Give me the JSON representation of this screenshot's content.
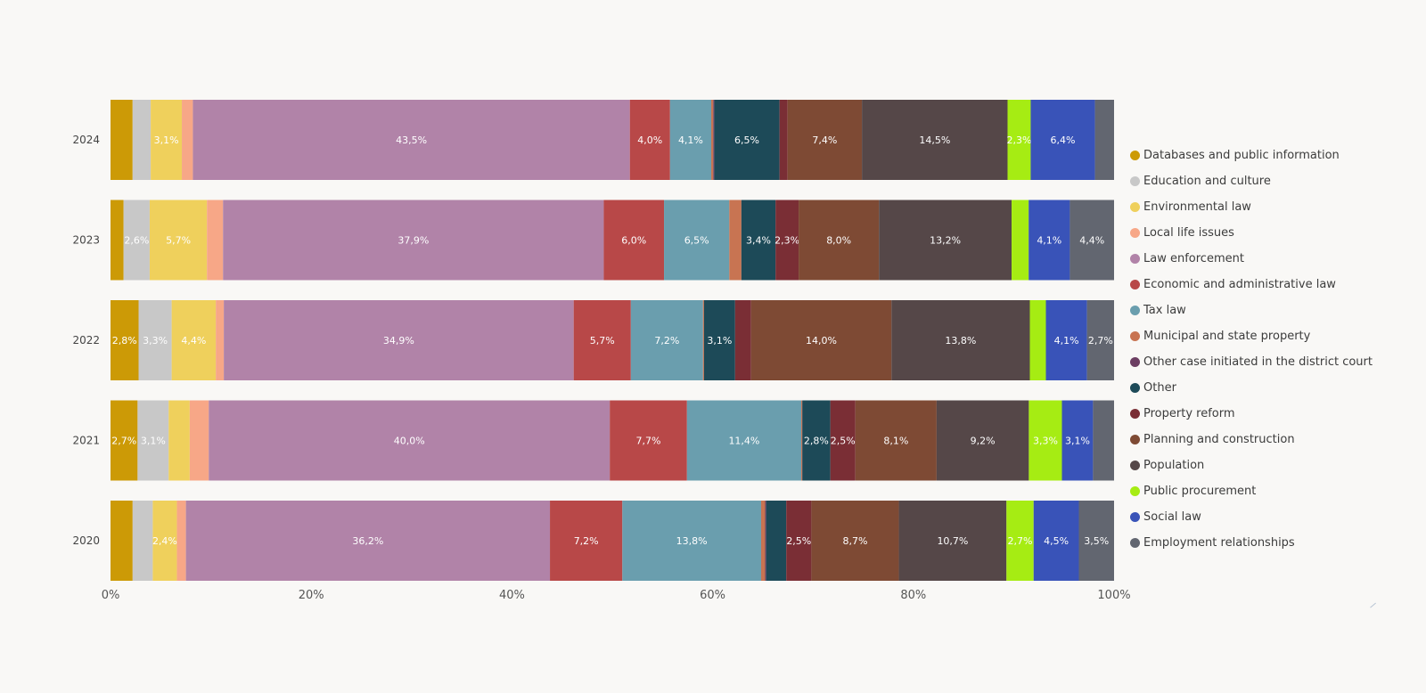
{
  "chart_data": {
    "type": "bar",
    "orientation": "horizontal",
    "stacking": "percent",
    "categories": [
      "2024",
      "2023",
      "2022",
      "2021",
      "2020"
    ],
    "x_ticks": [
      "0%",
      "20%",
      "40%",
      "60%",
      "80%",
      "100%"
    ],
    "xlim": [
      0,
      100
    ],
    "grid": false,
    "legend_position": "right",
    "series": [
      {
        "name": "Databases and public information",
        "color": "#cc9a06",
        "values": [
          2.2,
          1.3,
          2.8,
          2.7,
          2.2
        ],
        "labels": [
          "",
          "",
          "2,8%",
          "2,7%",
          ""
        ]
      },
      {
        "name": "Education and culture",
        "color": "#c8c8c8",
        "values": [
          1.8,
          2.6,
          3.3,
          3.1,
          2.0
        ],
        "labels": [
          "",
          "2,6%",
          "3,3%",
          "3,1%",
          ""
        ]
      },
      {
        "name": "Environmental law",
        "color": "#efd05c",
        "values": [
          3.1,
          5.7,
          4.4,
          2.1,
          2.4
        ],
        "labels": [
          "3,1%",
          "5,7%",
          "4,4%",
          "",
          "2,4%"
        ]
      },
      {
        "name": "Local life issues",
        "color": "#f7a787",
        "values": [
          1.1,
          1.6,
          0.8,
          1.9,
          0.9
        ],
        "labels": [
          "",
          "",
          "",
          "",
          ""
        ]
      },
      {
        "name": "Law enforcement",
        "color": "#b183a8",
        "values": [
          43.5,
          37.9,
          34.9,
          40.0,
          36.2
        ],
        "labels": [
          "43,5%",
          "37,9%",
          "34,9%",
          "40,0%",
          "36,2%"
        ]
      },
      {
        "name": "Economic and administrative law",
        "color": "#b84848",
        "values": [
          4.0,
          6.0,
          5.7,
          7.7,
          7.2
        ],
        "labels": [
          "4,0%",
          "6,0%",
          "5,7%",
          "7,7%",
          "7,2%"
        ]
      },
      {
        "name": "Tax law",
        "color": "#6a9eae",
        "values": [
          4.1,
          6.5,
          7.2,
          11.4,
          13.8
        ],
        "labels": [
          "4,1%",
          "6,5%",
          "7,2%",
          "11,4%",
          "13,8%"
        ]
      },
      {
        "name": "Municipal and state property",
        "color": "#c87452",
        "values": [
          0.2,
          1.2,
          0.1,
          0.1,
          0.4
        ],
        "labels": [
          "",
          "",
          "",
          "",
          ""
        ]
      },
      {
        "name": "Other case initiated in the district court",
        "color": "#6c3e62",
        "values": [
          0.1,
          0.0,
          0.0,
          0.0,
          0.1
        ],
        "labels": [
          "",
          "",
          "",
          "",
          ""
        ]
      },
      {
        "name": "Other",
        "color": "#1d4a58",
        "values": [
          6.5,
          3.4,
          3.1,
          2.8,
          2.0
        ],
        "labels": [
          "6,5%",
          "3,4%",
          "3,1%",
          "2,8%",
          ""
        ]
      },
      {
        "name": "Property reform",
        "color": "#7a2e35",
        "values": [
          0.8,
          2.3,
          1.6,
          2.5,
          2.5
        ],
        "labels": [
          "",
          "2,3%",
          "",
          "2,5%",
          "2,5%"
        ]
      },
      {
        "name": "Planning and construction",
        "color": "#7e4a34",
        "values": [
          7.4,
          8.0,
          14.0,
          8.1,
          8.7
        ],
        "labels": [
          "7,4%",
          "8,0%",
          "14,0%",
          "8,1%",
          "8,7%"
        ]
      },
      {
        "name": "Population",
        "color": "#554748",
        "values": [
          14.5,
          13.2,
          13.8,
          9.2,
          10.7
        ],
        "labels": [
          "14,5%",
          "13,2%",
          "13,8%",
          "9,2%",
          "10,7%"
        ]
      },
      {
        "name": "Public procurement",
        "color": "#a6ec13",
        "values": [
          2.3,
          1.7,
          1.6,
          3.3,
          2.7
        ],
        "labels": [
          "2,3%",
          "",
          "",
          "3,3%",
          "2,7%"
        ]
      },
      {
        "name": "Social law",
        "color": "#3953b8",
        "values": [
          6.4,
          4.1,
          4.1,
          3.1,
          4.5
        ],
        "labels": [
          "6,4%",
          "4,1%",
          "4,1%",
          "3,1%",
          "4,5%"
        ]
      },
      {
        "name": "Employment relationships",
        "color": "#626670",
        "values": [
          1.9,
          4.4,
          2.7,
          2.1,
          3.5
        ],
        "labels": [
          "",
          "4,4%",
          "2,7%",
          "",
          "3,5%"
        ]
      }
    ]
  }
}
